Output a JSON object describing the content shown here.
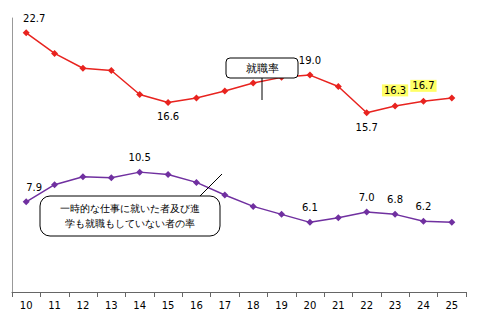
{
  "chart_data": {
    "type": "line",
    "categories": [
      "10",
      "11",
      "12",
      "13",
      "14",
      "15",
      "16",
      "17",
      "18",
      "19",
      "20",
      "21",
      "22",
      "23",
      "24",
      "25"
    ],
    "series": [
      {
        "name": "就職率",
        "color": "#e8231f",
        "marker": "diamond",
        "values": [
          22.7,
          20.9,
          19.6,
          19.4,
          17.3,
          16.6,
          17.0,
          17.6,
          18.3,
          18.8,
          19.0,
          18.0,
          15.7,
          16.3,
          16.7,
          17.0
        ],
        "value_labels": [
          "22.7",
          null,
          null,
          null,
          null,
          "16.6",
          null,
          null,
          null,
          null,
          "19.0",
          null,
          "15.7",
          "16.3",
          "16.7",
          null
        ]
      },
      {
        "name": "一時的な仕事に就いた者及び進学も就職もしていない者の率",
        "color": "#7030a0",
        "marker": "diamond",
        "values": [
          7.9,
          9.4,
          10.1,
          10.0,
          10.5,
          10.3,
          9.6,
          8.5,
          7.5,
          6.8,
          6.1,
          6.5,
          7.0,
          6.8,
          6.2,
          6.1
        ],
        "value_labels": [
          "7.9",
          null,
          null,
          null,
          "10.5",
          null,
          null,
          null,
          null,
          null,
          "6.1",
          null,
          "7.0",
          "6.8",
          "6.2",
          null
        ]
      }
    ],
    "annotations": [
      {
        "text": [
          "就職率"
        ]
      },
      {
        "text": [
          "一時的な仕事に就いた者及び進",
          "学も就職もしていない者の率"
        ]
      }
    ],
    "ylim": [
      0,
      24
    ],
    "grid": false,
    "tick_labels": "x"
  }
}
